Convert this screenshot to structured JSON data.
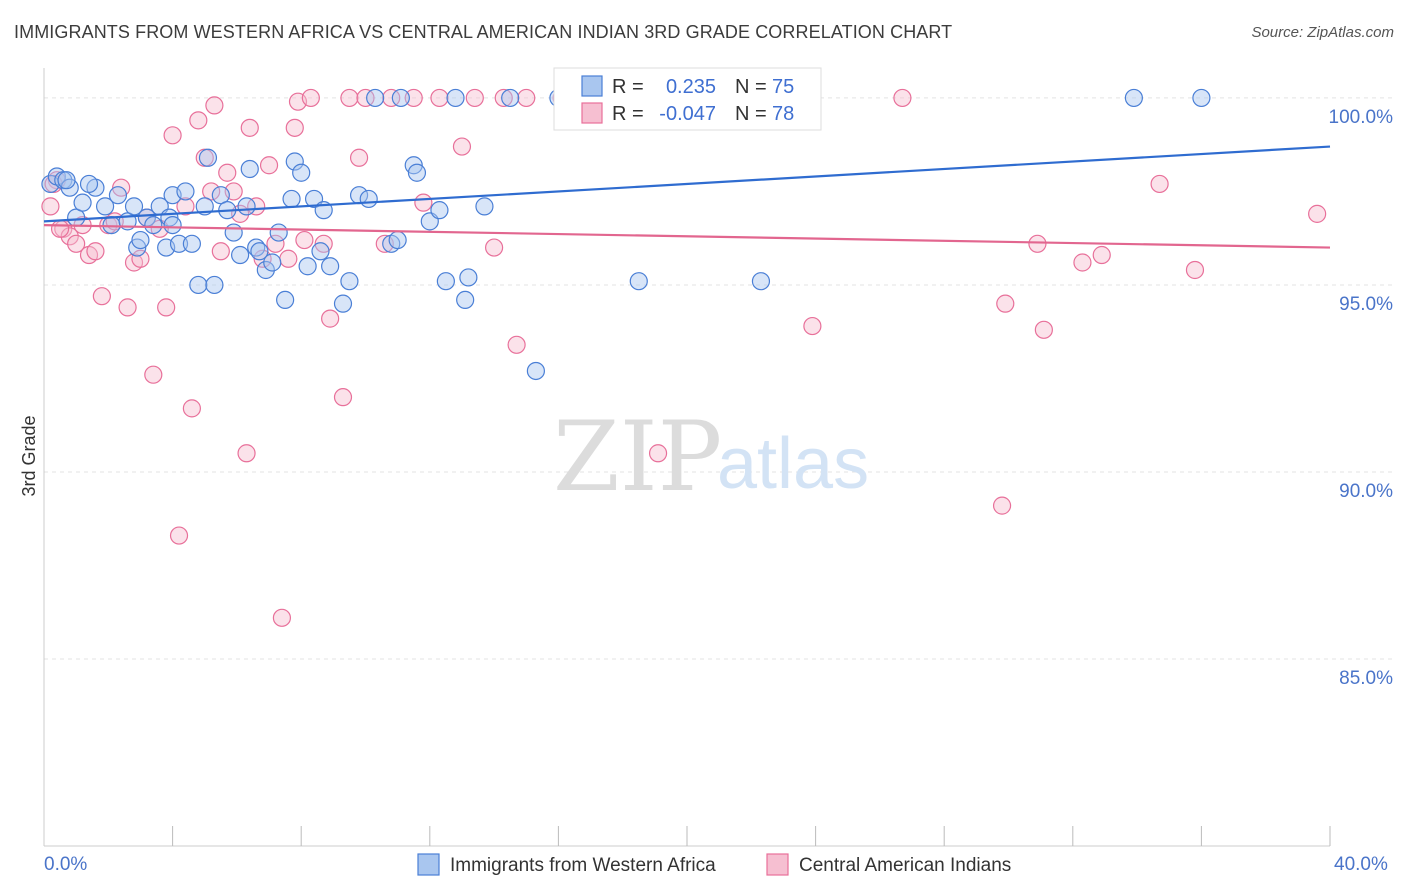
{
  "header": {
    "title": "IMMIGRANTS FROM WESTERN AFRICA VS CENTRAL AMERICAN INDIAN 3RD GRADE CORRELATION CHART",
    "source": "Source: ZipAtlas.com"
  },
  "watermark": {
    "zip": "ZIP",
    "atlas": "atlas"
  },
  "stats": {
    "r_label": "R =",
    "n_label": "N =",
    "blue": {
      "r": "0.235",
      "n": "75"
    },
    "pink": {
      "r": "-0.047",
      "n": "78"
    }
  },
  "colors": {
    "blue": "#4a7fd6",
    "blue_fill": "#a9c6ef",
    "pink": "#e8709a",
    "pink_fill": "#f6bfd1",
    "axis_label": "#4a74c9",
    "grid": "#e3e3e3"
  },
  "chart_data": {
    "type": "scatter",
    "title": "IMMIGRANTS FROM WESTERN AFRICA VS CENTRAL AMERICAN INDIAN 3RD GRADE CORRELATION CHART",
    "xlabel": "",
    "ylabel": "3rd Grade",
    "xlim": [
      0,
      40
    ],
    "ylim": [
      80,
      100.8
    ],
    "x_tick_labels": [
      "0.0%",
      "40.0%"
    ],
    "y_ticks": [
      85,
      90,
      95,
      100
    ],
    "y_tick_labels": [
      "85.0%",
      "90.0%",
      "95.0%",
      "100.0%"
    ],
    "grid": true,
    "legend_position": "bottom",
    "series": [
      {
        "name": "Immigrants from Western Africa",
        "color": "#4a7fd6",
        "trend": {
          "x": [
            0,
            40
          ],
          "y": [
            96.7,
            98.7
          ]
        },
        "points": [
          [
            0.2,
            97.7
          ],
          [
            0.4,
            97.9
          ],
          [
            0.6,
            97.8
          ],
          [
            0.8,
            97.6
          ],
          [
            1.0,
            96.8
          ],
          [
            1.2,
            97.2
          ],
          [
            1.6,
            97.6
          ],
          [
            1.9,
            97.1
          ],
          [
            2.1,
            96.6
          ],
          [
            2.3,
            97.4
          ],
          [
            2.6,
            96.7
          ],
          [
            2.8,
            97.1
          ],
          [
            2.9,
            96.0
          ],
          [
            3.0,
            96.2
          ],
          [
            3.2,
            96.8
          ],
          [
            3.4,
            96.6
          ],
          [
            3.6,
            97.1
          ],
          [
            3.8,
            96.0
          ],
          [
            3.9,
            96.8
          ],
          [
            4.0,
            97.4
          ],
          [
            4.2,
            96.1
          ],
          [
            4.4,
            97.5
          ],
          [
            4.6,
            96.1
          ],
          [
            4.8,
            95.0
          ],
          [
            5.0,
            97.1
          ],
          [
            5.1,
            98.4
          ],
          [
            5.3,
            95.0
          ],
          [
            5.5,
            97.4
          ],
          [
            5.7,
            97.0
          ],
          [
            5.9,
            96.4
          ],
          [
            6.1,
            95.8
          ],
          [
            6.3,
            97.1
          ],
          [
            6.4,
            98.1
          ],
          [
            6.6,
            96.0
          ],
          [
            6.7,
            95.9
          ],
          [
            6.9,
            95.4
          ],
          [
            7.1,
            95.6
          ],
          [
            7.3,
            96.4
          ],
          [
            7.5,
            94.6
          ],
          [
            7.7,
            97.3
          ],
          [
            7.8,
            98.3
          ],
          [
            8.0,
            98.0
          ],
          [
            8.2,
            95.5
          ],
          [
            8.4,
            97.3
          ],
          [
            8.6,
            95.9
          ],
          [
            8.7,
            97.0
          ],
          [
            8.9,
            95.5
          ],
          [
            9.3,
            94.5
          ],
          [
            9.5,
            95.1
          ],
          [
            9.8,
            97.4
          ],
          [
            10.1,
            97.3
          ],
          [
            10.3,
            100.0
          ],
          [
            11.1,
            100.0
          ],
          [
            11.5,
            98.2
          ],
          [
            11.6,
            98.0
          ],
          [
            10.8,
            96.1
          ],
          [
            11.0,
            96.2
          ],
          [
            12.0,
            96.7
          ],
          [
            12.3,
            97.0
          ],
          [
            12.5,
            95.1
          ],
          [
            12.8,
            100.0
          ],
          [
            13.1,
            94.6
          ],
          [
            13.2,
            95.2
          ],
          [
            13.7,
            97.1
          ],
          [
            14.5,
            100.0
          ],
          [
            15.3,
            92.7
          ],
          [
            16.0,
            100.0
          ],
          [
            18.5,
            95.1
          ],
          [
            22.3,
            95.1
          ],
          [
            23.0,
            100.0
          ],
          [
            33.9,
            100.0
          ],
          [
            36.0,
            100.0
          ],
          [
            0.7,
            97.8
          ],
          [
            1.4,
            97.7
          ],
          [
            4.0,
            96.6
          ]
        ]
      },
      {
        "name": "Central American Indians",
        "color": "#e8709a",
        "trend": {
          "x": [
            0,
            40
          ],
          "y": [
            96.6,
            96.0
          ]
        },
        "points": [
          [
            0.2,
            97.1
          ],
          [
            0.4,
            97.8
          ],
          [
            0.6,
            96.5
          ],
          [
            0.8,
            96.3
          ],
          [
            1.0,
            96.1
          ],
          [
            1.2,
            96.6
          ],
          [
            1.4,
            95.8
          ],
          [
            1.6,
            95.9
          ],
          [
            1.8,
            94.7
          ],
          [
            2.0,
            96.6
          ],
          [
            2.2,
            96.7
          ],
          [
            2.4,
            97.6
          ],
          [
            2.6,
            94.4
          ],
          [
            2.8,
            95.6
          ],
          [
            3.0,
            95.7
          ],
          [
            3.2,
            96.8
          ],
          [
            3.4,
            92.6
          ],
          [
            3.6,
            96.5
          ],
          [
            3.8,
            94.4
          ],
          [
            4.0,
            99.0
          ],
          [
            4.2,
            88.3
          ],
          [
            4.4,
            97.1
          ],
          [
            4.6,
            91.7
          ],
          [
            4.8,
            99.4
          ],
          [
            5.0,
            98.4
          ],
          [
            5.2,
            97.5
          ],
          [
            5.3,
            99.8
          ],
          [
            5.5,
            95.9
          ],
          [
            5.7,
            98.0
          ],
          [
            5.9,
            97.5
          ],
          [
            6.1,
            96.9
          ],
          [
            6.3,
            90.5
          ],
          [
            6.4,
            99.2
          ],
          [
            6.6,
            97.1
          ],
          [
            6.8,
            95.7
          ],
          [
            7.0,
            98.2
          ],
          [
            7.2,
            96.1
          ],
          [
            7.4,
            86.1
          ],
          [
            7.6,
            95.7
          ],
          [
            7.8,
            99.2
          ],
          [
            7.9,
            99.9
          ],
          [
            8.1,
            96.2
          ],
          [
            8.3,
            100.0
          ],
          [
            8.7,
            96.1
          ],
          [
            8.9,
            94.1
          ],
          [
            9.3,
            92.0
          ],
          [
            9.5,
            100.0
          ],
          [
            9.8,
            98.4
          ],
          [
            10.0,
            100.0
          ],
          [
            10.6,
            96.1
          ],
          [
            10.8,
            100.0
          ],
          [
            11.5,
            100.0
          ],
          [
            11.8,
            97.2
          ],
          [
            12.3,
            100.0
          ],
          [
            13.0,
            98.7
          ],
          [
            13.4,
            100.0
          ],
          [
            14.0,
            96.0
          ],
          [
            14.3,
            100.0
          ],
          [
            15.0,
            100.0
          ],
          [
            16.1,
            100.0
          ],
          [
            17.0,
            100.0
          ],
          [
            14.7,
            93.4
          ],
          [
            19.1,
            90.5
          ],
          [
            20.0,
            100.0
          ],
          [
            23.0,
            100.0
          ],
          [
            23.9,
            93.9
          ],
          [
            26.7,
            100.0
          ],
          [
            30.9,
            96.1
          ],
          [
            32.3,
            95.6
          ],
          [
            32.9,
            95.8
          ],
          [
            34.7,
            97.7
          ],
          [
            35.8,
            95.4
          ],
          [
            39.6,
            96.9
          ],
          [
            29.8,
            89.1
          ],
          [
            29.9,
            94.5
          ],
          [
            31.1,
            93.8
          ],
          [
            0.3,
            97.7
          ],
          [
            0.5,
            96.5
          ]
        ]
      }
    ]
  },
  "legend": {
    "items": [
      {
        "label": "Immigrants from Western Africa"
      },
      {
        "label": "Central American Indians"
      }
    ]
  }
}
